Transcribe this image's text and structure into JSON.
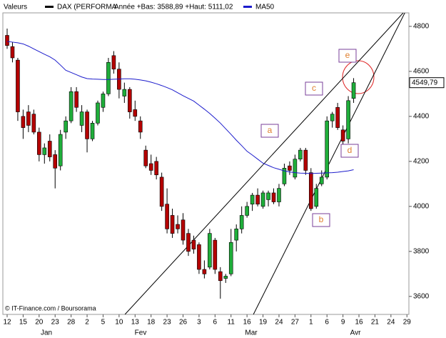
{
  "chart_data": {
    "type": "candlestick",
    "title": "Valeurs",
    "legend_note": "Année +Bas: 3588,89 +Haut: 5111,02",
    "source": "© IT-Finance.com / Boursorama",
    "categories": [
      "12",
      null,
      null,
      "15",
      null,
      null,
      "20",
      null,
      null,
      "23",
      null,
      null,
      "28",
      null,
      null,
      "2",
      null,
      null,
      "5",
      null,
      null,
      "10",
      null,
      null,
      "13",
      null,
      null,
      "18",
      null,
      null,
      "23",
      null,
      null,
      "26",
      null,
      null,
      "3",
      null,
      null,
      "6",
      null,
      null,
      "11",
      null,
      null,
      "16",
      null,
      null,
      "19",
      null,
      null,
      "24",
      null,
      null,
      "27",
      null,
      null,
      "1",
      null,
      null,
      "6",
      null,
      null,
      "9",
      null,
      null,
      "16",
      null,
      null,
      "21",
      null,
      null,
      "24",
      null,
      null,
      "29"
    ],
    "months": [
      "Jan",
      "Fev",
      "Mar",
      "Avr"
    ],
    "up_color": "#1fae3a",
    "down_color": "#b40000",
    "series": [
      {
        "name": "DAX (PERFORMA",
        "color": "#000000",
        "open": [
          4760,
          4710,
          4650,
          4400,
          4420,
          4410,
          4330,
          4230,
          4290,
          4230,
          4180,
          4330,
          4380,
          4510,
          4360,
          4420,
          4300,
          4370,
          4440,
          4500,
          4670,
          4610,
          4490,
          4520,
          4430,
          4380,
          4250,
          4190,
          4200,
          4130,
          4010,
          3960,
          3920,
          3940,
          3880,
          3850,
          3830,
          3720,
          3730,
          3850,
          3710,
          3680,
          3700,
          3850,
          3900,
          3960,
          4010,
          4050,
          4000,
          4030,
          4060,
          4020,
          4100,
          4180,
          4130,
          4210,
          4250,
          4150,
          4000,
          4100,
          4130,
          4380,
          4440,
          4340,
          4300,
          4480,
          null,
          null,
          null,
          null,
          null,
          null,
          null,
          null,
          null,
          null
        ],
        "high": [
          4790,
          4730,
          4660,
          4430,
          4450,
          4430,
          4350,
          4280,
          4320,
          4250,
          4340,
          4400,
          4530,
          4530,
          4450,
          4430,
          4380,
          4470,
          4510,
          4660,
          4690,
          4640,
          4550,
          4530,
          4470,
          4400,
          4270,
          4230,
          4220,
          4150,
          4080,
          3990,
          3960,
          3970,
          3900,
          3870,
          3840,
          3760,
          3900,
          3860,
          3730,
          3700,
          3900,
          3920,
          4000,
          4020,
          4060,
          4080,
          4070,
          4070,
          4080,
          4100,
          4190,
          4200,
          4230,
          4260,
          4260,
          4170,
          4100,
          4160,
          4400,
          4420,
          4460,
          4360,
          4490,
          4570,
          null,
          null,
          null,
          null,
          null,
          null,
          null,
          null,
          null,
          null
        ],
        "low": [
          4700,
          4640,
          4380,
          4300,
          4330,
          4320,
          4200,
          4190,
          4200,
          4080,
          4160,
          4300,
          4370,
          4420,
          4330,
          4240,
          4290,
          4360,
          4420,
          4490,
          4590,
          4480,
          4460,
          4390,
          4380,
          4300,
          4170,
          4140,
          4120,
          3980,
          3880,
          3860,
          3880,
          3830,
          3780,
          3790,
          3700,
          3680,
          3720,
          3700,
          3590,
          3660,
          3690,
          3800,
          3880,
          3950,
          3980,
          4000,
          3990,
          4000,
          4010,
          4000,
          4090,
          4140,
          4120,
          4200,
          4140,
          3980,
          3990,
          4090,
          4120,
          4350,
          4340,
          4260,
          4280,
          4460,
          null,
          null,
          null,
          null,
          null,
          null,
          null,
          null,
          null,
          null
        ],
        "close": [
          4715,
          4660,
          4420,
          4350,
          4360,
          4330,
          4230,
          4260,
          4220,
          4170,
          4320,
          4380,
          4510,
          4440,
          4420,
          4300,
          4370,
          4460,
          4500,
          4640,
          4610,
          4520,
          4520,
          4420,
          4400,
          4330,
          4180,
          4160,
          4140,
          4000,
          3900,
          3880,
          3900,
          3850,
          3800,
          3810,
          3720,
          3700,
          3880,
          3720,
          3670,
          3690,
          3840,
          3900,
          3960,
          4000,
          4050,
          4010,
          4060,
          4060,
          4020,
          4080,
          4170,
          4160,
          4210,
          4250,
          4160,
          3990,
          4080,
          4130,
          4380,
          4410,
          4350,
          4290,
          4470,
          4549.79,
          null,
          null,
          null,
          null,
          null,
          null,
          null,
          null,
          null,
          null
        ]
      },
      {
        "name": "MA50",
        "color": "#1c1ccc",
        "values": [
          4733,
          4730,
          4727,
          4722,
          4712,
          4700,
          4688,
          4676,
          4665,
          4650,
          4628,
          4605,
          4595,
          4585,
          4575,
          4568,
          4566,
          4565,
          4564,
          4564,
          4565,
          4566,
          4567,
          4567,
          4565,
          4562,
          4558,
          4552,
          4545,
          4537,
          4528,
          4518,
          4505,
          4492,
          4480,
          4468,
          4450,
          4432,
          4413,
          4392,
          4370,
          4345,
          4320,
          4294,
          4270,
          4245,
          4228,
          4210,
          4192,
          4182,
          4172,
          4165,
          4158,
          4153,
          4150,
          4148,
          4147,
          4146,
          4147,
          4148,
          4149,
          4150,
          4152,
          4155,
          4158,
          4163,
          null,
          null,
          null,
          null,
          null,
          null,
          null,
          null,
          null,
          null
        ]
      }
    ],
    "last_value": 4549.79,
    "last_value_label": "4549,79",
    "trend_lines": [
      {
        "x": [
          22.1,
          74.3
        ],
        "y": [
          3520,
          4860
        ]
      },
      {
        "x": [
          46.2,
          74.6
        ],
        "y": [
          3520,
          4860
        ]
      }
    ],
    "annotations": [
      "a",
      "b",
      "c",
      "d",
      "e"
    ],
    "ylim": [
      3520,
      4860
    ],
    "yticks": [
      3600,
      3800,
      4000,
      4200,
      4400,
      4600,
      4800
    ],
    "grid": false
  }
}
